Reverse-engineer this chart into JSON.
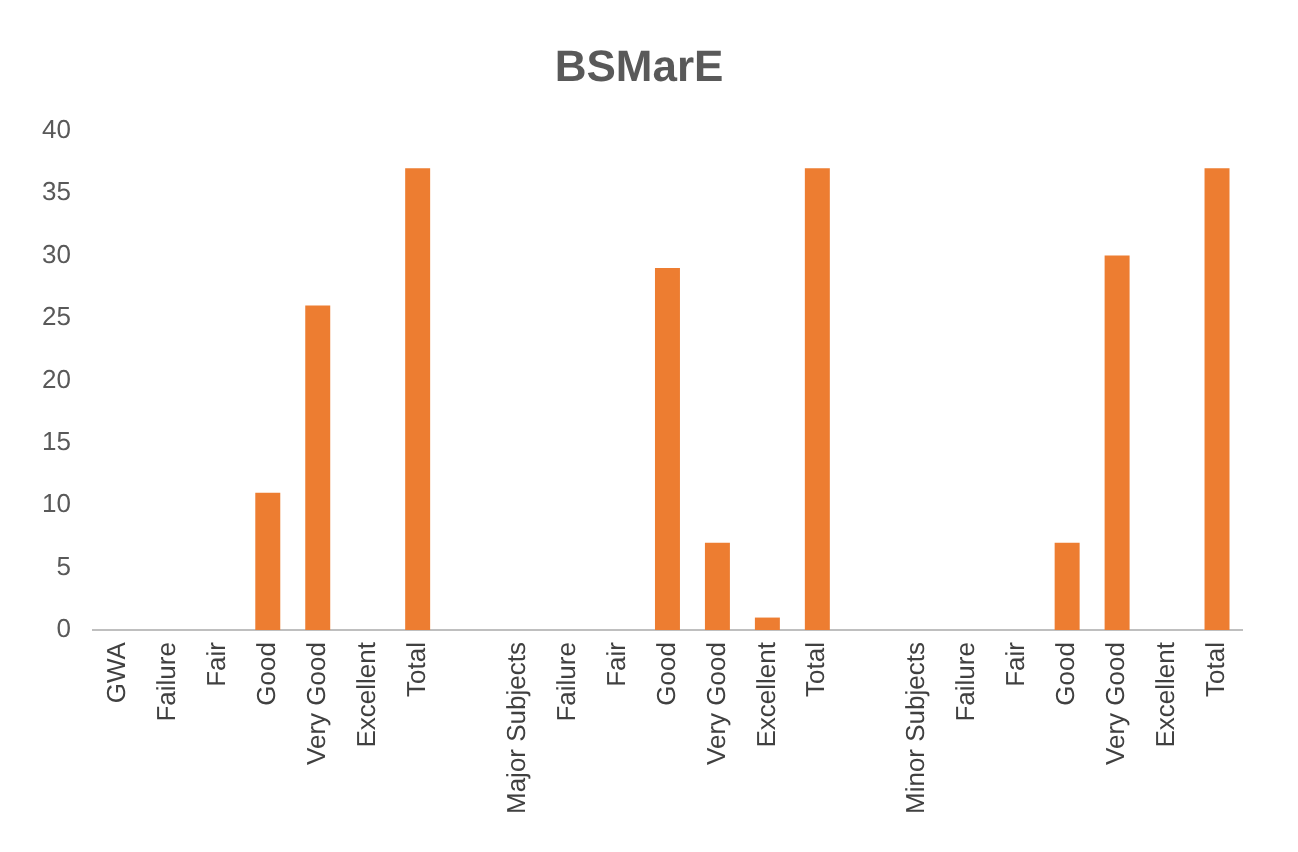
{
  "chart_data": {
    "type": "bar",
    "title": "BSMarE",
    "categories": [
      "GWA",
      "Failure",
      "Fair",
      "Good",
      "Very Good",
      "Excellent",
      "Total",
      null,
      "Major Subjects",
      "Failure",
      "Fair",
      "Good",
      "Very Good",
      "Excellent",
      "Total",
      null,
      "Minor Subjects",
      "Failure",
      "Fair",
      "Good",
      "Very Good",
      "Excellent",
      "Total"
    ],
    "values": [
      0,
      0,
      0,
      11,
      26,
      0,
      37,
      null,
      0,
      0,
      0,
      29,
      7,
      1,
      37,
      null,
      0,
      0,
      0,
      7,
      30,
      0,
      37
    ],
    "color": "#ed7d31",
    "ylim": [
      0,
      40
    ],
    "yticks": [
      0,
      5,
      10,
      15,
      20,
      25,
      30,
      35,
      40
    ],
    "grid": false,
    "legend": false
  }
}
